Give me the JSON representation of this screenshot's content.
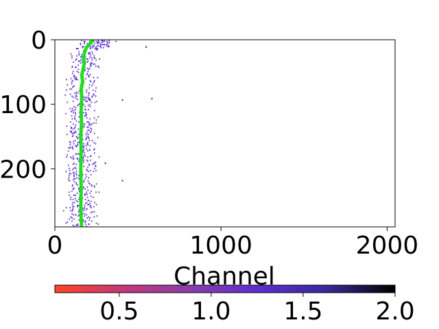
{
  "chart_data": {
    "type": "heatmap",
    "xlabel": "Channel",
    "ylabel": "",
    "xlim": [
      0,
      2048
    ],
    "ylim": [
      290,
      0
    ],
    "x_ticks": [
      {
        "value": 0,
        "label": "0"
      },
      {
        "value": 1000,
        "label": "1000"
      },
      {
        "value": 2000,
        "label": "2000"
      }
    ],
    "y_ticks": [
      {
        "value": 0,
        "label": "0"
      },
      {
        "value": 100,
        "label": "100"
      },
      {
        "value": 200,
        "label": "200"
      }
    ],
    "grid": false,
    "trace": {
      "color": "#22dd22",
      "points": [
        {
          "x": 235,
          "y": 0
        },
        {
          "x": 215,
          "y": 5
        },
        {
          "x": 190,
          "y": 12
        },
        {
          "x": 178,
          "y": 20
        },
        {
          "x": 172,
          "y": 28
        },
        {
          "x": 178,
          "y": 36
        },
        {
          "x": 170,
          "y": 45
        },
        {
          "x": 162,
          "y": 55
        },
        {
          "x": 168,
          "y": 65
        },
        {
          "x": 158,
          "y": 75
        },
        {
          "x": 162,
          "y": 90
        },
        {
          "x": 158,
          "y": 110
        },
        {
          "x": 160,
          "y": 130
        },
        {
          "x": 156,
          "y": 150
        },
        {
          "x": 158,
          "y": 170
        },
        {
          "x": 156,
          "y": 200
        },
        {
          "x": 158,
          "y": 230
        },
        {
          "x": 156,
          "y": 260
        },
        {
          "x": 160,
          "y": 290
        }
      ]
    },
    "colorbar": {
      "range": [
        0.15,
        2.0
      ],
      "ticks": [
        {
          "value": 0.5,
          "label": "0.5"
        },
        {
          "value": 1.0,
          "label": "1.0"
        },
        {
          "value": 1.5,
          "label": "1.5"
        },
        {
          "value": 2.0,
          "label": "2.0"
        }
      ],
      "colors": [
        "#ff4422",
        "#c43878",
        "#8a3cac",
        "#5a2ed2",
        "#3a2898",
        "#000000"
      ]
    },
    "marker_color": "#5a2ed2",
    "outlier_points": [
      {
        "x": 545,
        "y": 10
      },
      {
        "x": 403,
        "y": 92
      },
      {
        "x": 580,
        "y": 90
      },
      {
        "x": 300,
        "y": 190
      },
      {
        "x": 403,
        "y": 217
      }
    ]
  }
}
